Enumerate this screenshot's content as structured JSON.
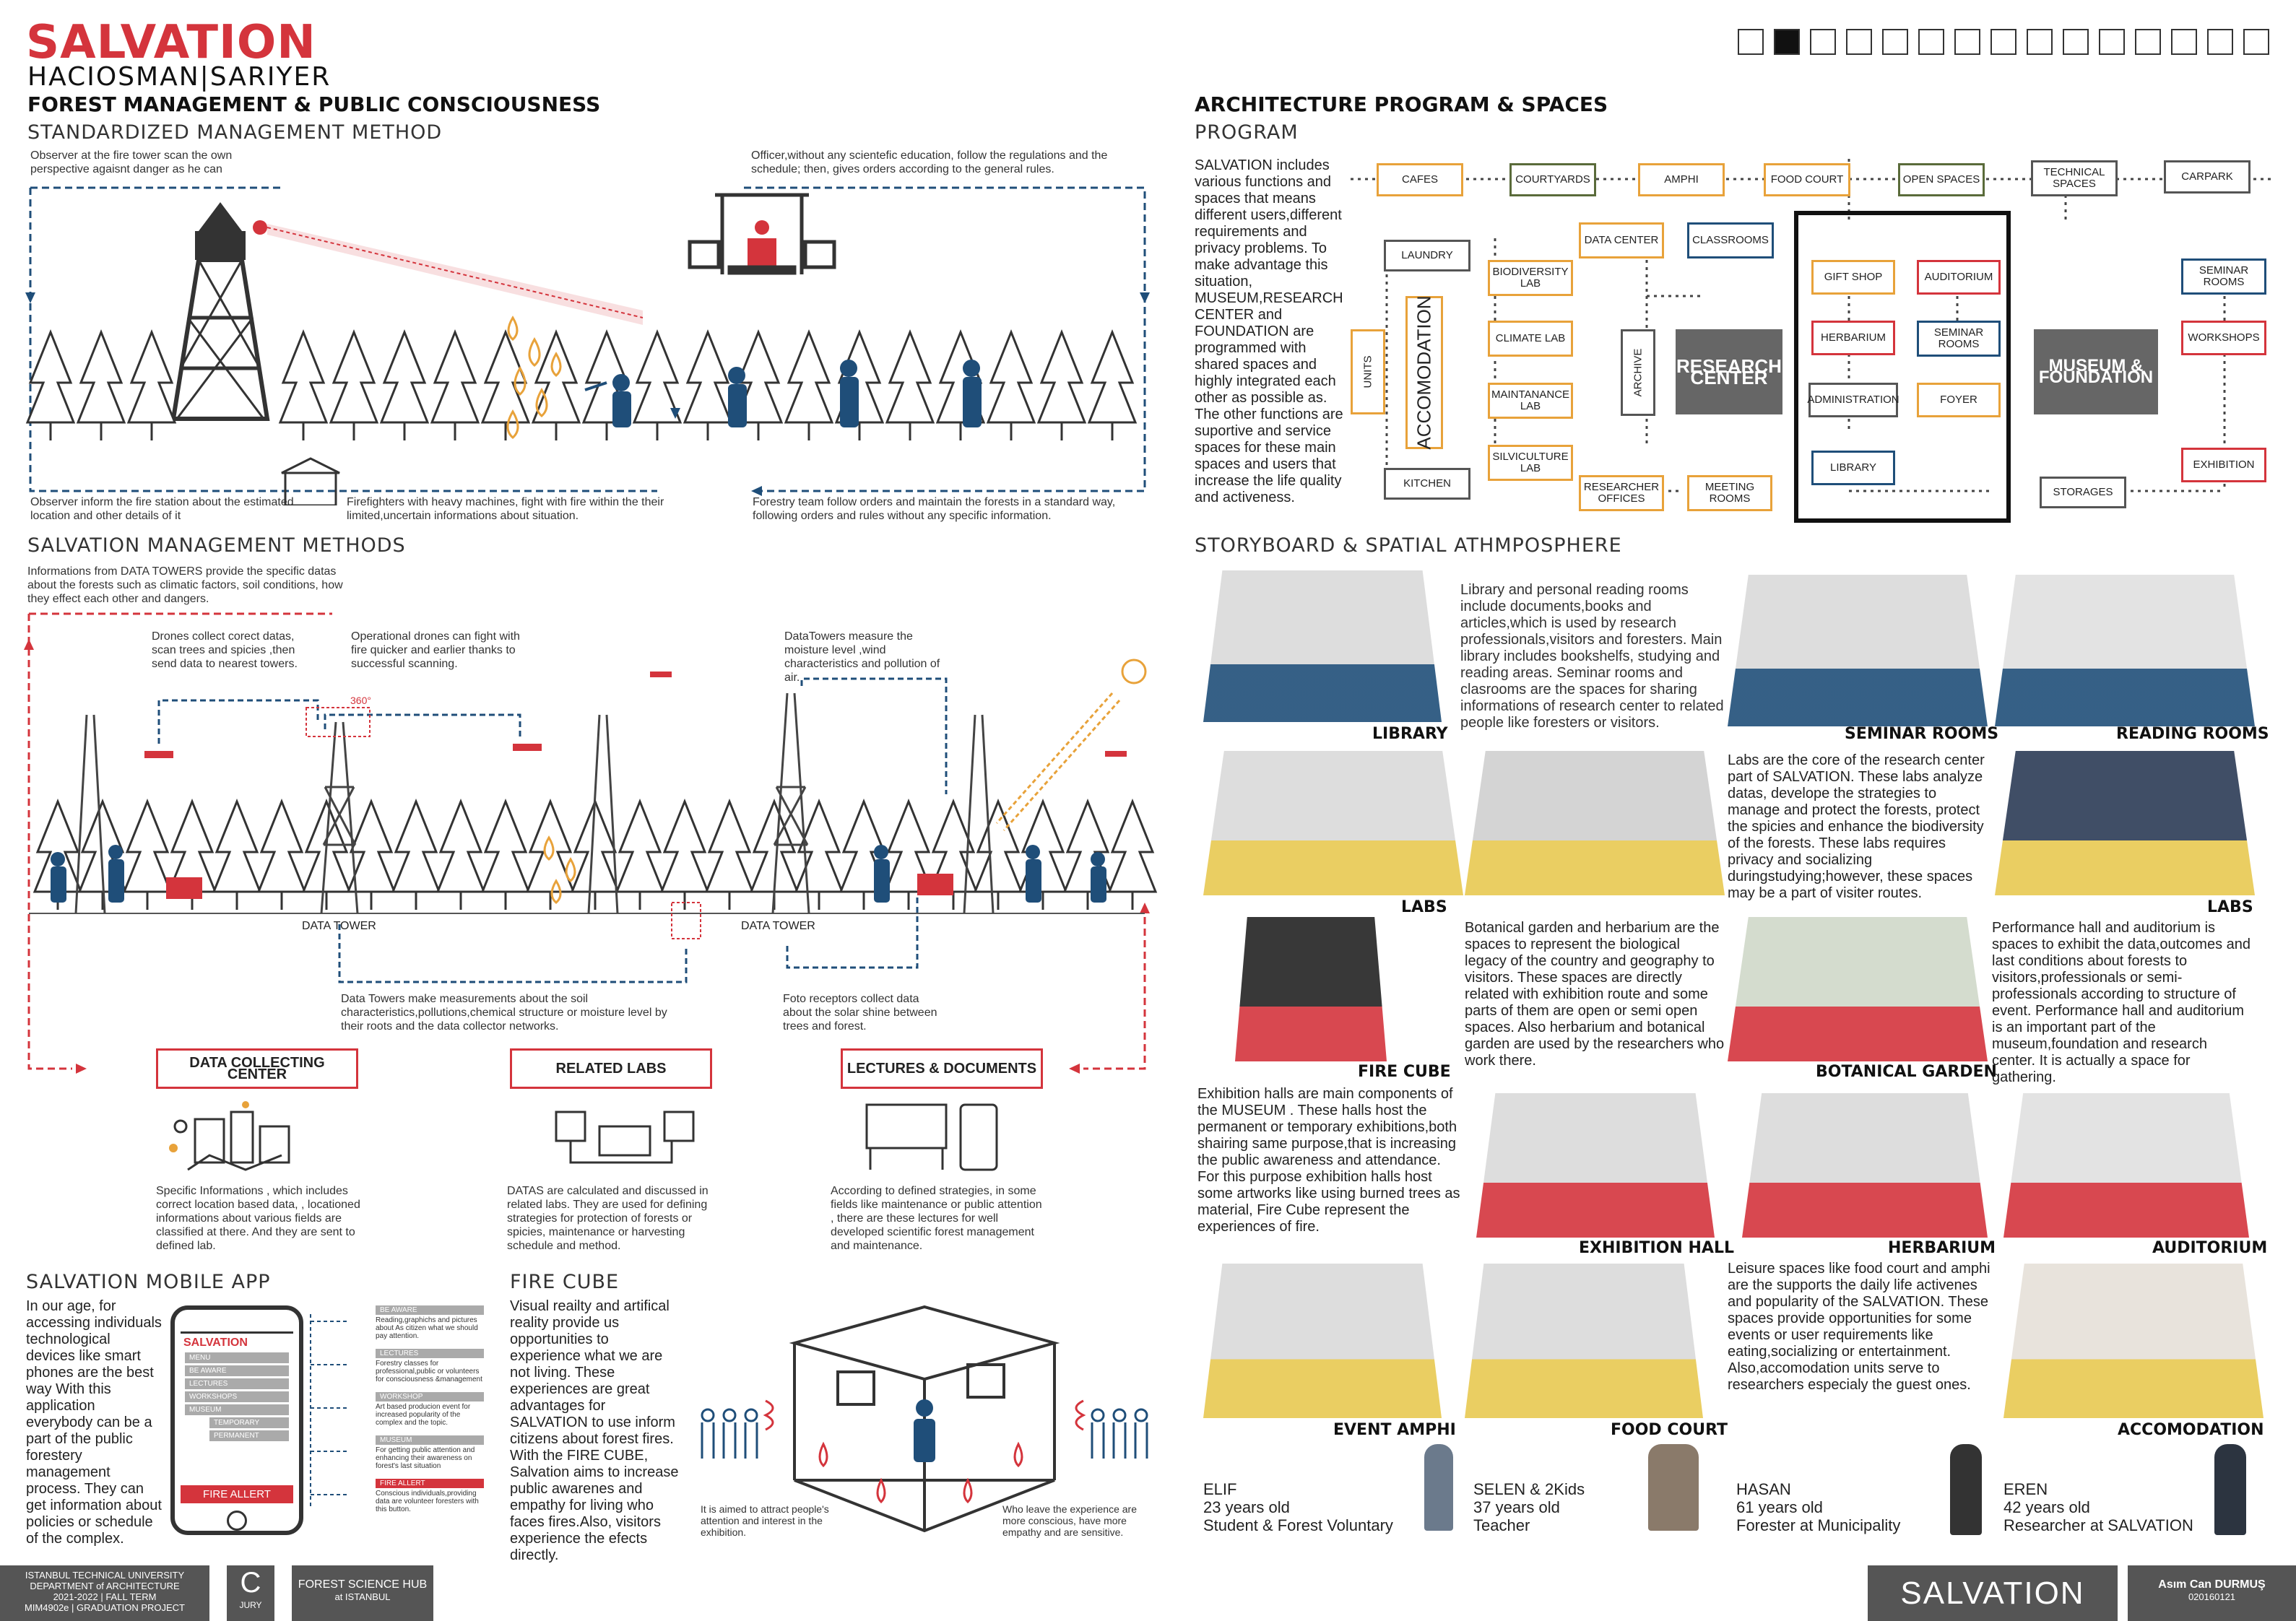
{
  "header": {
    "title": "SALVATION",
    "location": "HACIOSMAN|SARIYER",
    "left_heading": "FOREST MANAGEMENT  & PUBLIC CONSCIOUSNESS",
    "right_heading": "ARCHITECTURE PROGRAM & SPACES",
    "page_squares": 15,
    "active_square": 2
  },
  "standard": {
    "title": "STANDARDIZED MANAGEMENT METHOD",
    "obs_top": "Observer at the fire  tower scan the own perspective agaisnt danger as he can",
    "officer": "Officer,without any scientefic education, follow the regulations and the schedule; then, gives orders  according to the general rules.",
    "obs_bottom": "Observer inform the fire station about the estimated location and other details of it",
    "firefighters": "Firefighters  with heavy machines, fight with fire within the their limited,uncertain informations about situation.",
    "forestry": "Forestry team follow  orders and maintain the forests in a standard way, following orders and rules without any specific information."
  },
  "salvation_methods": {
    "title": "SALVATION MANAGEMENT METHODS",
    "intro": "Informations from DATA TOWERS provide the specific datas about the forests such as climatic factors, soil conditions, how they effect each other and dangers.",
    "drones": "Drones collect corect datas, scan trees and spicies  ,then send data to nearest towers.",
    "op_drones": "Operational drones can fight with fire quicker and earlier thanks to successful scanning.",
    "datatowers": "DataTowers measure the moisture level ,wind characteristics and pollution of air.",
    "data_tower_label_1": "DATA TOWER",
    "data_tower_label_2": "DATA TOWER",
    "tower_badge": "360°",
    "soil": "Data Towers make measurements about the soil characteristics,pollutions,chemical structure or moisture level by their roots and the data collector networks.",
    "foto": "Foto receptors collect data about the solar shine between trees and forest.",
    "boxes": [
      "DATA COLLECTING CENTER",
      "RELATED LABS",
      "LECTURES & DOCUMENTS"
    ],
    "collect_text": "Specific Informations , which includes correct location based data, , locationed informations  about various fields are classified at there. And they are sent to defined lab.",
    "labs_text": "DATAS are calculated and discussed in related labs. They are used for defining strategies for protection of forests or spicies, maintenance or harvesting schedule and method.",
    "lectures_text": "According to defined strategies, in some fields like maintenance or public  attention , there are these lectures for well developed  scientific forest management and maintenance."
  },
  "mobile_app": {
    "title": "SALVATION MOBILE APP",
    "text": "In our age, for accessing individuals technological devices like smart phones are the best way With this application everybody can be a part of the public forestery management process. They can get information about policies or schedule of the complex.",
    "screen_title": "SALVATION",
    "menu": "MENU",
    "items": [
      "BE AWARE",
      "LECTURES",
      "WORKSHOPS",
      "MUSEUM",
      "TEMPORARY",
      "PERMANENT"
    ],
    "fire_button": "FIRE ALLERT",
    "notes": [
      {
        "title": "BE AWARE",
        "text": "Reading,graphichs and pictures about As citizen what we should pay attention."
      },
      {
        "title": "LECTURES",
        "text": "Forestry classes for professional,public or volunteers for consciousness &management"
      },
      {
        "title": "WORKSHOP",
        "text": "Art based producion event for increased popularity of the complex and the topic."
      },
      {
        "title": "MUSEUM",
        "text": "For getting public attention and enhancing their awareness on forest's  last situation"
      },
      {
        "title": "FIRE ALLERT",
        "text": "Conscious individuals,providing data are volunteer foresters with this button."
      }
    ]
  },
  "fire_cube": {
    "title": "FIRE CUBE",
    "text": "Visual reailty and artifical reality provide us opportunities to experience what we are not living. These experiences are great advantages for SALVATION to use inform citizens about forest fires. With the FIRE CUBE, Salvation aims to increase public awarenes and empathy for living who faces fires.Also, visitors experience the efects directly.",
    "left_note": "It is aimed to attract people's attention and interest in the exhibition.",
    "right_note": "Who leave the experience are more conscious, have more empathy and are sensitive."
  },
  "program": {
    "title": "PROGRAM",
    "text": "SALVATION includes various functions and spaces that means different users,different requirements and privacy problems. To make advantage this situation, MUSEUM,RESEARCH CENTER and FOUNDATION are programmed with shared spaces and highly integrated each other as possible as. The other functions are suportive and service spaces for these main spaces and users that increase the life quality and activeness.",
    "top_row": [
      "CAFES",
      "COURTYARDS",
      "AMPHI",
      "FOOD COURT",
      "OPEN SPACES",
      "TECHNICAL SPACES",
      "CARPARK"
    ],
    "laundry": "LAUNDRY",
    "kitchen": "KITCHEN",
    "units": "UNITS",
    "accomodation": "ACCOMODATION",
    "labs": [
      "BIODIVERSITY LAB",
      "CLIMATE LAB",
      "MAINTANANCE LAB",
      "SILVICULTURE LAB"
    ],
    "data_center": "DATA CENTER",
    "classrooms": "CLASSROOMS",
    "archive": "ARCHIVE",
    "research_center": "RESEARCH CENTER",
    "researcher_offices": "RESEARCHER OFFICES",
    "meeting_rooms": "MEETING ROOMS",
    "museum_items": [
      "GIFT SHOP",
      "AUDITORIUM",
      "HERBARIUM",
      "SEMINAR ROOMS",
      "ADMINISTRATION",
      "FOYER",
      "LIBRARY"
    ],
    "museum_foundation": "MUSEUM & FOUNDATION",
    "storages": "STORAGES",
    "right_col": [
      "SEMINAR ROOMS",
      "WORKSHOPS",
      "EXHIBITION"
    ]
  },
  "storyboard": {
    "title": "STORYBOARD & SPATIAL ATHMPOSPHERE",
    "library_text": "Library and personal reading rooms include documents,books and articles,which is used by research professionals,visitors and foresters. Main library includes bookshelfs, studying and reading areas. Seminar rooms and clasrooms are the spaces for sharing informations of research center to related people like foresters or visitors.",
    "labs_text": "Labs  are the core of the research center part of SALVATION. These labs analyze datas, develope the strategies to manage and protect the forests, protect the spicies and enhance the biodiversity of the forests. These labs requires privacy and socializing duringstudying;however, these spaces may be a part of visiter routes.",
    "botanical_text": "Botanical garden and herbarium are the spaces to represent the biological legacy of the country and geography to visitors. These spaces are directly related with exhibition route and some parts of them are open or semi open spaces. Also herbarium and botanical garden are used by the researchers who work there.",
    "performance_text": "Performance hall and auditorium is spaces to exhibit the data,outcomes and last conditions about forests to visitors,professionals or semi-professionals according to structure of event. Performance hall and auditorium is an important part of the museum,foundation and research center. It is actually a space for gathering.",
    "exhibition_text": "Exhibition halls are main components of the MUSEUM . These halls host the permanent or temporary exhibitions,both shairing same purpose,that is increasing the public awareness and attendance. For this purpose exhibition halls host some artworks like using burned trees as material, Fire Cube represent the experiences of fire.",
    "leisure_text": "Leisure spaces like food court and amphi are the supports  the daily life activenes and popularity of the SALVATION. These spaces provide opportunities for some events or user requirements like eating,socializing or entertainment. Also,accomodation units serve to researchers especialy the guest ones.",
    "captions": [
      "LIBRARY",
      "SEMINAR ROOMS",
      "READING ROOMS",
      "LABS",
      "LABS",
      "FIRE CUBE",
      "BOTANICAL GARDEN",
      "EXHIBITION HALL",
      "HERBARIUM",
      "AUDITORIUM",
      "EVENT AMPHI",
      "FOOD COURT",
      "ACCOMODATION"
    ]
  },
  "people": [
    {
      "name": "ELIF",
      "age": "23 years old",
      "role": "Student & Forest Voluntary"
    },
    {
      "name": "SELEN & 2Kids",
      "age": "37 years old",
      "role": "Teacher"
    },
    {
      "name": "HASAN",
      "age": "61 years old",
      "role": "Forester at Municipality"
    },
    {
      "name": "EREN",
      "age": "42 years old",
      "role": "Researcher at SALVATION"
    }
  ],
  "footer": {
    "uni": [
      "ISTANBUL TECHNICAL UNIVERSITY",
      "DEPARTMENT of ARCHITECTURE",
      "2021-2022 | FALL TERM",
      "MIM4902e | GRADUATION PROJECT"
    ],
    "jury_letter": "C",
    "jury": "JURY",
    "hub": "FOREST SCIENCE HUB",
    "hub_sub": "at ISTANBUL",
    "project": "SALVATION",
    "author": "Asım Can DURMUŞ",
    "author_id": "020160121"
  }
}
